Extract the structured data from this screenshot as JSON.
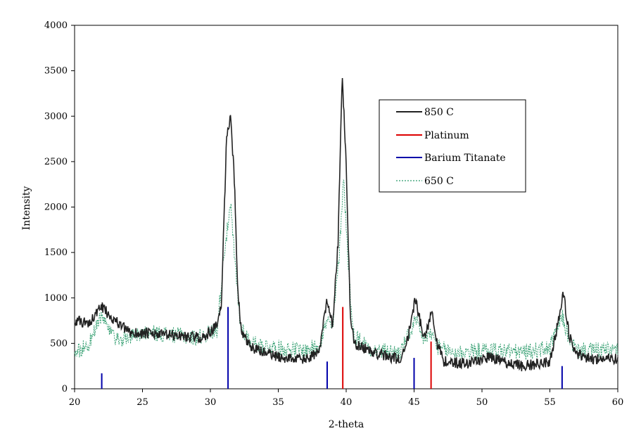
{
  "chart_data": {
    "type": "line",
    "title": "",
    "xlabel": "2-theta",
    "ylabel": "Intensity",
    "xlim": [
      20,
      60
    ],
    "ylim": [
      0,
      4000
    ],
    "xticks": [
      20,
      25,
      30,
      35,
      40,
      45,
      50,
      55,
      60
    ],
    "yticks": [
      0,
      500,
      1000,
      1500,
      2000,
      2500,
      3000,
      3500,
      4000
    ],
    "grid": false,
    "legend_position": "top-right",
    "legend": [
      {
        "label": "850 C",
        "color": "#222222",
        "style": "solid"
      },
      {
        "label": "Platinum",
        "color": "#dd0000",
        "style": "solid"
      },
      {
        "label": "Barium Titanate",
        "color": "#0000aa",
        "style": "solid"
      },
      {
        "label": "650 C",
        "color": "#2a9a6a",
        "style": "dotted"
      }
    ],
    "series": [
      {
        "name": "850 C",
        "color": "#222222",
        "baseline_points": [
          [
            20,
            750
          ],
          [
            21,
            720
          ],
          [
            22,
            900
          ],
          [
            23,
            750
          ],
          [
            24,
            620
          ],
          [
            26,
            600
          ],
          [
            28,
            580
          ],
          [
            29.5,
            560
          ],
          [
            30.5,
            700
          ],
          [
            30.8,
            900
          ],
          [
            31.2,
            2800
          ],
          [
            31.5,
            3000
          ],
          [
            31.8,
            2200
          ],
          [
            32,
            1100
          ],
          [
            32.3,
            600
          ],
          [
            33,
            450
          ],
          [
            35,
            350
          ],
          [
            37,
            320
          ],
          [
            38,
            400
          ],
          [
            38.6,
            1000
          ],
          [
            39,
            700
          ],
          [
            39.4,
            1600
          ],
          [
            39.7,
            3450
          ],
          [
            40,
            2500
          ],
          [
            40.3,
            800
          ],
          [
            40.6,
            500
          ],
          [
            42,
            400
          ],
          [
            44,
            320
          ],
          [
            44.6,
            600
          ],
          [
            45.1,
            1000
          ],
          [
            45.5,
            700
          ],
          [
            45.8,
            550
          ],
          [
            46.3,
            880
          ],
          [
            46.7,
            500
          ],
          [
            47.2,
            300
          ],
          [
            49,
            280
          ],
          [
            50.5,
            350
          ],
          [
            51.5,
            300
          ],
          [
            53,
            250
          ],
          [
            55,
            300
          ],
          [
            55.7,
            800
          ],
          [
            56,
            1050
          ],
          [
            56.4,
            600
          ],
          [
            56.8,
            400
          ],
          [
            58,
            330
          ],
          [
            60,
            330
          ]
        ],
        "noise": 60
      },
      {
        "name": "650 C",
        "color": "#2a9a6a",
        "baseline_points": [
          [
            20,
            400
          ],
          [
            21,
            480
          ],
          [
            22,
            800
          ],
          [
            22.5,
            650
          ],
          [
            23,
            520
          ],
          [
            25,
            620
          ],
          [
            27,
            600
          ],
          [
            29,
            560
          ],
          [
            30.5,
            650
          ],
          [
            31,
            1500
          ],
          [
            31.5,
            2000
          ],
          [
            31.8,
            1400
          ],
          [
            32.2,
            700
          ],
          [
            33,
            500
          ],
          [
            35,
            450
          ],
          [
            37,
            420
          ],
          [
            38,
            480
          ],
          [
            38.6,
            750
          ],
          [
            39,
            650
          ],
          [
            39.5,
            1500
          ],
          [
            39.8,
            2350
          ],
          [
            40.1,
            1500
          ],
          [
            40.5,
            600
          ],
          [
            42,
            420
          ],
          [
            44,
            400
          ],
          [
            45.1,
            750
          ],
          [
            45.6,
            550
          ],
          [
            46.3,
            600
          ],
          [
            46.8,
            450
          ],
          [
            48,
            400
          ],
          [
            50,
            420
          ],
          [
            51,
            430
          ],
          [
            53,
            400
          ],
          [
            55,
            450
          ],
          [
            55.9,
            800
          ],
          [
            56.4,
            550
          ],
          [
            57,
            420
          ],
          [
            60,
            430
          ]
        ],
        "noise": 90
      }
    ],
    "reference_lines": [
      {
        "name": "Platinum",
        "color": "#dd0000",
        "lines": [
          {
            "x": 39.75,
            "height": 900
          },
          {
            "x": 46.25,
            "height": 520
          }
        ]
      },
      {
        "name": "Barium Titanate",
        "color": "#0000aa",
        "lines": [
          {
            "x": 22.0,
            "height": 170
          },
          {
            "x": 31.3,
            "height": 900
          },
          {
            "x": 38.6,
            "height": 300
          },
          {
            "x": 45.0,
            "height": 340
          },
          {
            "x": 55.9,
            "height": 250
          }
        ]
      }
    ]
  }
}
